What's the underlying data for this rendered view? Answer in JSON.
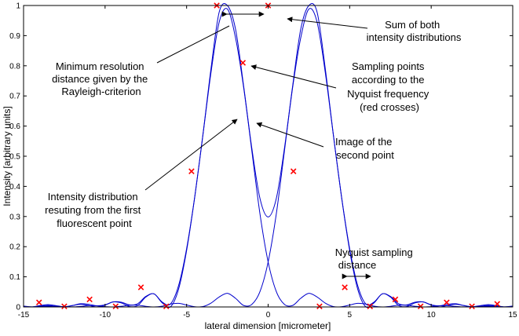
{
  "chart_data": {
    "type": "line",
    "xlabel": "lateral dimension [micrometer]",
    "ylabel": "Intensity [arbitrary units]",
    "xlim": [
      -15,
      15
    ],
    "ylim": [
      0,
      1
    ],
    "xticks": [
      "-15",
      "-10",
      "-5",
      "0",
      "5",
      "10",
      "15"
    ],
    "yticks": [
      "0",
      "0.1",
      "0.2",
      "0.3",
      "0.4",
      "0.5",
      "0.6",
      "0.7",
      "0.8",
      "0.9",
      "1"
    ],
    "x": [
      -15.0,
      -14.5,
      -14.0,
      -13.5,
      -13.0,
      -12.5,
      -12.0,
      -11.5,
      -11.0,
      -10.5,
      -10.0,
      -9.5,
      -9.0,
      -8.5,
      -8.0,
      -7.5,
      -7.0,
      -6.5,
      -6.0,
      -5.5,
      -5.0,
      -4.5,
      -4.0,
      -3.5,
      -3.0,
      -2.5,
      -2.0,
      -1.5,
      -1.0,
      -0.5,
      0.0,
      0.5,
      1.0,
      1.5,
      2.0,
      2.5,
      3.0,
      3.5,
      4.0,
      4.5,
      5.0,
      5.5,
      6.0,
      6.5,
      7.0,
      7.5,
      8.0,
      8.5,
      9.0,
      9.5,
      10.0,
      10.5,
      11.0,
      11.5,
      12.0,
      12.5,
      13.0,
      13.5,
      14.0,
      14.5,
      15.0
    ],
    "series": [
      {
        "values": [
          0.0023,
          0.0001,
          0.0032,
          0.005,
          0.0022,
          0.0,
          0.0047,
          0.0088,
          0.0048,
          0.0001,
          0.0061,
          0.0167,
          0.0134,
          0.0013,
          0.0049,
          0.0329,
          0.0434,
          0.0138,
          0.0,
          0.0576,
          0.1872,
          0.3652,
          0.5701,
          0.7795,
          0.9454,
          0.9882,
          0.8928,
          0.727,
          0.5179,
          0.3083,
          0.1493,
          0.0513,
          0.0086,
          0.0049,
          0.0287,
          0.0453,
          0.0331,
          0.0129,
          0.0012,
          0.0008,
          0.0064,
          0.0119,
          0.0094,
          0.0027,
          0.0001,
          0.0021,
          0.0058,
          0.0056,
          0.0023,
          0.0001,
          0.0011,
          0.0037,
          0.0039,
          0.0018,
          0.0002,
          0.0007,
          0.0022,
          0.0027,
          0.0014,
          0.0002,
          0.0005
        ]
      },
      {
        "values": [
          0.0005,
          0.0002,
          0.0014,
          0.0027,
          0.0022,
          0.0007,
          0.0002,
          0.0018,
          0.0039,
          0.0037,
          0.0011,
          0.0001,
          0.0023,
          0.0056,
          0.0058,
          0.0021,
          0.0001,
          0.0027,
          0.0094,
          0.0119,
          0.0064,
          0.0008,
          0.0012,
          0.0129,
          0.0331,
          0.0453,
          0.0287,
          0.0049,
          0.0086,
          0.0513,
          0.1493,
          0.3083,
          0.5179,
          0.727,
          0.8928,
          0.9882,
          0.9454,
          0.7795,
          0.5701,
          0.3652,
          0.1872,
          0.0576,
          0.0,
          0.0138,
          0.0434,
          0.0329,
          0.0049,
          0.0013,
          0.0134,
          0.0167,
          0.0061,
          0.0001,
          0.0048,
          0.0088,
          0.0047,
          0.0,
          0.0022,
          0.005,
          0.0032,
          0.0001,
          0.0023
        ]
      },
      {
        "values": [
          0.0028,
          0.0003,
          0.0046,
          0.0077,
          0.0044,
          0.0007,
          0.0049,
          0.0106,
          0.0087,
          0.0038,
          0.0072,
          0.0168,
          0.0157,
          0.0069,
          0.0107,
          0.035,
          0.0435,
          0.0165,
          0.0094,
          0.0695,
          0.1936,
          0.366,
          0.5713,
          0.7924,
          0.9785,
          1.0335,
          0.9215,
          0.7319,
          0.5265,
          0.3596,
          0.2986,
          0.3596,
          0.5265,
          0.7319,
          0.9215,
          1.0335,
          0.9785,
          0.7924,
          0.5713,
          0.366,
          0.1936,
          0.0695,
          0.0094,
          0.0165,
          0.0435,
          0.035,
          0.0107,
          0.0069,
          0.0157,
          0.0168,
          0.0072,
          0.0038,
          0.0087,
          0.0106,
          0.0049,
          0.0007,
          0.0044,
          0.0077,
          0.0046,
          0.0003,
          0.0028
        ]
      }
    ],
    "sampling_points": {
      "x": [
        -14.05,
        -12.5,
        -10.95,
        -9.35,
        -7.8,
        -6.25,
        -4.7,
        -3.15,
        -1.55,
        0.0,
        1.55,
        3.15,
        4.7,
        6.25,
        7.8,
        9.35,
        10.95,
        12.5,
        14.05
      ],
      "y": [
        0.015,
        0.002,
        0.025,
        0.002,
        0.065,
        0.002,
        0.45,
        1.0,
        0.81,
        1.0,
        0.45,
        0.002,
        0.065,
        0.002,
        0.025,
        0.002,
        0.015,
        0.002,
        0.01
      ]
    },
    "annotations": [
      {
        "lines": [
          "Sum of both",
          "intensity distributions"
        ]
      },
      {
        "lines": [
          "Minimum resolution",
          "distance given by the",
          "Rayleigh-criterion"
        ]
      },
      {
        "lines": [
          "Sampling points",
          "according to the",
          "Nyquist frequency",
          "(red crosses)"
        ]
      },
      {
        "lines": [
          "Image of the",
          "second point"
        ]
      },
      {
        "lines": [
          "Intensity distribution",
          "resuting from the first",
          "fluorescent point"
        ]
      },
      {
        "lines": [
          "Nyquist sampling",
          "distance"
        ]
      }
    ],
    "colors": {
      "curve": "#0000cc",
      "marker": "#ff0000",
      "axis": "#000000",
      "background": "#ffffff"
    }
  }
}
